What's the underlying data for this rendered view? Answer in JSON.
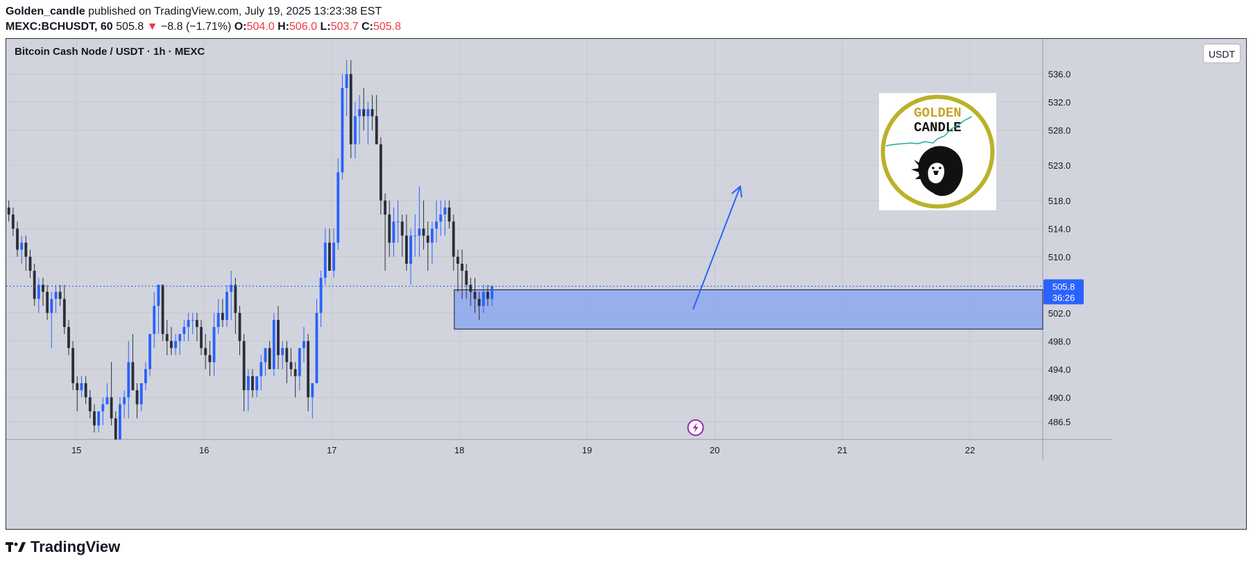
{
  "header": {
    "author": "Golden_candle",
    "published_text": "published on TradingView.com, July 19, 2025 13:23:38 EST",
    "symbol": "MEXC:BCHUSDT, 60",
    "last": "505.8",
    "change_arrow": "▼",
    "change": "−8.8 (−1.71%)",
    "o_label": "O:",
    "o_value": "504.0",
    "h_label": "H:",
    "h_value": "506.0",
    "l_label": "L:",
    "l_value": "503.7",
    "c_label": "C:",
    "c_value": "505.8"
  },
  "chart_title": "Bitcoin Cash Node / USDT · 1h · MEXC",
  "currency_button": "USDT",
  "logo": {
    "line1": "GOLDEN",
    "line2": "CANDLE"
  },
  "footer": {
    "brand": "TradingView"
  },
  "colors": {
    "up": "#2962ff",
    "down": "#2a2e39",
    "zone": "#8ea8f0",
    "price_tag": "#2962ff",
    "arrow": "#2962ff"
  },
  "chart_data": {
    "type": "candlestick",
    "ylim": [
      484,
      541
    ],
    "y_ticks": [
      536.0,
      532.0,
      528.0,
      523.0,
      518.0,
      514.0,
      510.0,
      502.0,
      498.0,
      494.0,
      490.0,
      486.5
    ],
    "x_ticks": [
      {
        "label": "15",
        "day": 15
      },
      {
        "label": "16",
        "day": 16
      },
      {
        "label": "17",
        "day": 17
      },
      {
        "label": "18",
        "day": 18
      },
      {
        "label": "19",
        "day": 19
      },
      {
        "label": "20",
        "day": 20
      },
      {
        "label": "21",
        "day": 21
      },
      {
        "label": "22",
        "day": 22
      }
    ],
    "x_range_days": [
      14.45,
      22.57
    ],
    "last_price": 505.8,
    "last_price_label": "505.8",
    "countdown": "36:26",
    "candles_start_day": 14.47,
    "candle_step_day": 0.0335,
    "candles": [
      [
        517,
        518,
        515,
        516
      ],
      [
        516,
        517,
        513,
        514
      ],
      [
        514,
        515,
        510,
        511
      ],
      [
        511,
        513,
        509,
        512
      ],
      [
        512,
        513,
        508,
        510
      ],
      [
        510,
        511,
        507,
        508
      ],
      [
        508,
        509,
        503,
        504
      ],
      [
        504,
        507,
        502,
        506
      ],
      [
        506,
        507,
        503,
        505
      ],
      [
        505,
        506,
        501,
        502
      ],
      [
        502,
        505,
        497,
        504
      ],
      [
        504,
        506,
        502,
        505
      ],
      [
        505,
        506,
        503,
        504
      ],
      [
        504,
        506,
        499,
        500
      ],
      [
        500,
        501,
        496,
        497
      ],
      [
        497,
        498,
        491,
        492
      ],
      [
        492,
        493,
        488,
        491
      ],
      [
        491,
        493,
        490,
        492
      ],
      [
        492,
        493,
        489,
        490
      ],
      [
        490,
        491,
        487,
        488
      ],
      [
        488,
        489,
        485,
        486
      ],
      [
        486,
        488,
        485,
        488
      ],
      [
        488,
        490,
        486,
        489
      ],
      [
        489,
        492,
        489,
        490
      ],
      [
        490,
        495,
        486,
        487
      ],
      [
        487,
        488,
        484,
        484
      ],
      [
        484,
        490,
        484,
        489
      ],
      [
        489,
        491,
        487,
        490
      ],
      [
        490,
        498,
        487,
        495
      ],
      [
        495,
        499,
        491,
        491
      ],
      [
        491,
        492,
        487,
        489
      ],
      [
        489,
        492,
        488,
        492
      ],
      [
        492,
        495,
        491,
        494
      ],
      [
        494,
        499,
        493,
        499
      ],
      [
        499,
        505,
        497,
        503
      ],
      [
        503,
        506,
        499,
        506
      ],
      [
        506,
        506,
        498,
        499
      ],
      [
        499,
        501,
        496,
        498
      ],
      [
        498,
        500,
        496,
        497
      ],
      [
        497,
        499,
        496,
        498
      ],
      [
        498,
        499,
        496,
        499
      ],
      [
        499,
        501,
        498,
        500
      ],
      [
        500,
        502,
        498,
        501
      ],
      [
        501,
        502,
        499,
        501
      ],
      [
        501,
        502,
        498,
        500
      ],
      [
        500,
        501,
        496,
        497
      ],
      [
        497,
        499,
        494,
        496
      ],
      [
        496,
        498,
        493,
        495
      ],
      [
        495,
        502,
        493,
        500
      ],
      [
        500,
        504,
        499,
        502
      ],
      [
        502,
        504,
        500,
        501
      ],
      [
        501,
        506,
        500,
        505
      ],
      [
        505,
        508,
        501,
        506
      ],
      [
        506,
        507,
        499,
        502
      ],
      [
        502,
        503,
        496,
        498
      ],
      [
        498,
        499,
        488,
        491
      ],
      [
        491,
        494,
        488,
        493
      ],
      [
        493,
        494,
        490,
        491
      ],
      [
        491,
        493,
        490,
        493
      ],
      [
        493,
        496,
        491,
        495
      ],
      [
        495,
        497,
        493,
        497
      ],
      [
        497,
        498,
        494,
        494
      ],
      [
        494,
        502,
        493,
        501
      ],
      [
        501,
        503,
        494,
        496
      ],
      [
        496,
        498,
        494,
        497
      ],
      [
        497,
        498,
        492,
        495
      ],
      [
        495,
        497,
        493,
        494
      ],
      [
        494,
        495,
        490,
        493
      ],
      [
        493,
        497,
        491,
        497
      ],
      [
        497,
        500,
        495,
        498
      ],
      [
        498,
        499,
        488,
        490
      ],
      [
        490,
        492,
        487,
        492
      ],
      [
        492,
        504,
        492,
        502
      ],
      [
        502,
        508,
        500,
        507
      ],
      [
        507,
        514,
        506,
        512
      ],
      [
        512,
        514,
        508,
        508
      ],
      [
        508,
        514,
        507,
        512
      ],
      [
        512,
        524,
        511,
        522
      ],
      [
        522,
        536,
        521,
        534
      ],
      [
        534,
        538,
        530,
        536
      ],
      [
        536,
        538,
        524,
        526
      ],
      [
        526,
        532,
        524,
        530
      ],
      [
        530,
        533,
        526,
        531
      ],
      [
        531,
        534,
        528,
        530
      ],
      [
        530,
        532,
        526,
        531
      ],
      [
        531,
        533,
        528,
        530
      ],
      [
        530,
        533,
        526,
        526
      ],
      [
        526,
        527,
        516,
        518
      ],
      [
        518,
        519,
        508,
        516
      ],
      [
        516,
        518,
        510,
        512
      ],
      [
        512,
        517,
        510,
        515
      ],
      [
        515,
        518,
        512,
        515
      ],
      [
        515,
        516,
        510,
        513
      ],
      [
        513,
        516,
        508,
        509
      ],
      [
        509,
        514,
        506,
        513
      ],
      [
        513,
        516,
        510,
        513
      ],
      [
        513,
        520,
        510,
        514
      ],
      [
        514,
        518,
        511,
        513
      ],
      [
        513,
        515,
        508,
        512
      ],
      [
        512,
        515,
        509,
        514
      ],
      [
        514,
        518,
        512,
        515
      ],
      [
        515,
        518,
        513,
        516
      ],
      [
        516,
        518,
        513,
        517
      ],
      [
        517,
        518,
        514,
        515
      ],
      [
        515,
        516,
        508,
        510
      ],
      [
        510,
        511,
        505,
        509
      ],
      [
        509,
        511,
        504,
        508
      ],
      [
        508,
        509,
        504,
        506
      ],
      [
        506,
        507,
        503,
        505
      ],
      [
        505,
        507,
        502,
        504
      ],
      [
        504,
        505,
        501,
        503
      ],
      [
        503,
        506,
        502,
        505
      ],
      [
        505,
        506,
        503,
        504
      ],
      [
        504,
        506,
        503,
        505.8
      ]
    ],
    "zones": [
      {
        "from_day": 17.96,
        "to_day": 22.57,
        "low": 499.7,
        "high": 505.3
      }
    ],
    "arrows": [
      {
        "from_day": 19.83,
        "from_price": 502.5,
        "to_day": 20.2,
        "to_price": 520
      }
    ]
  }
}
